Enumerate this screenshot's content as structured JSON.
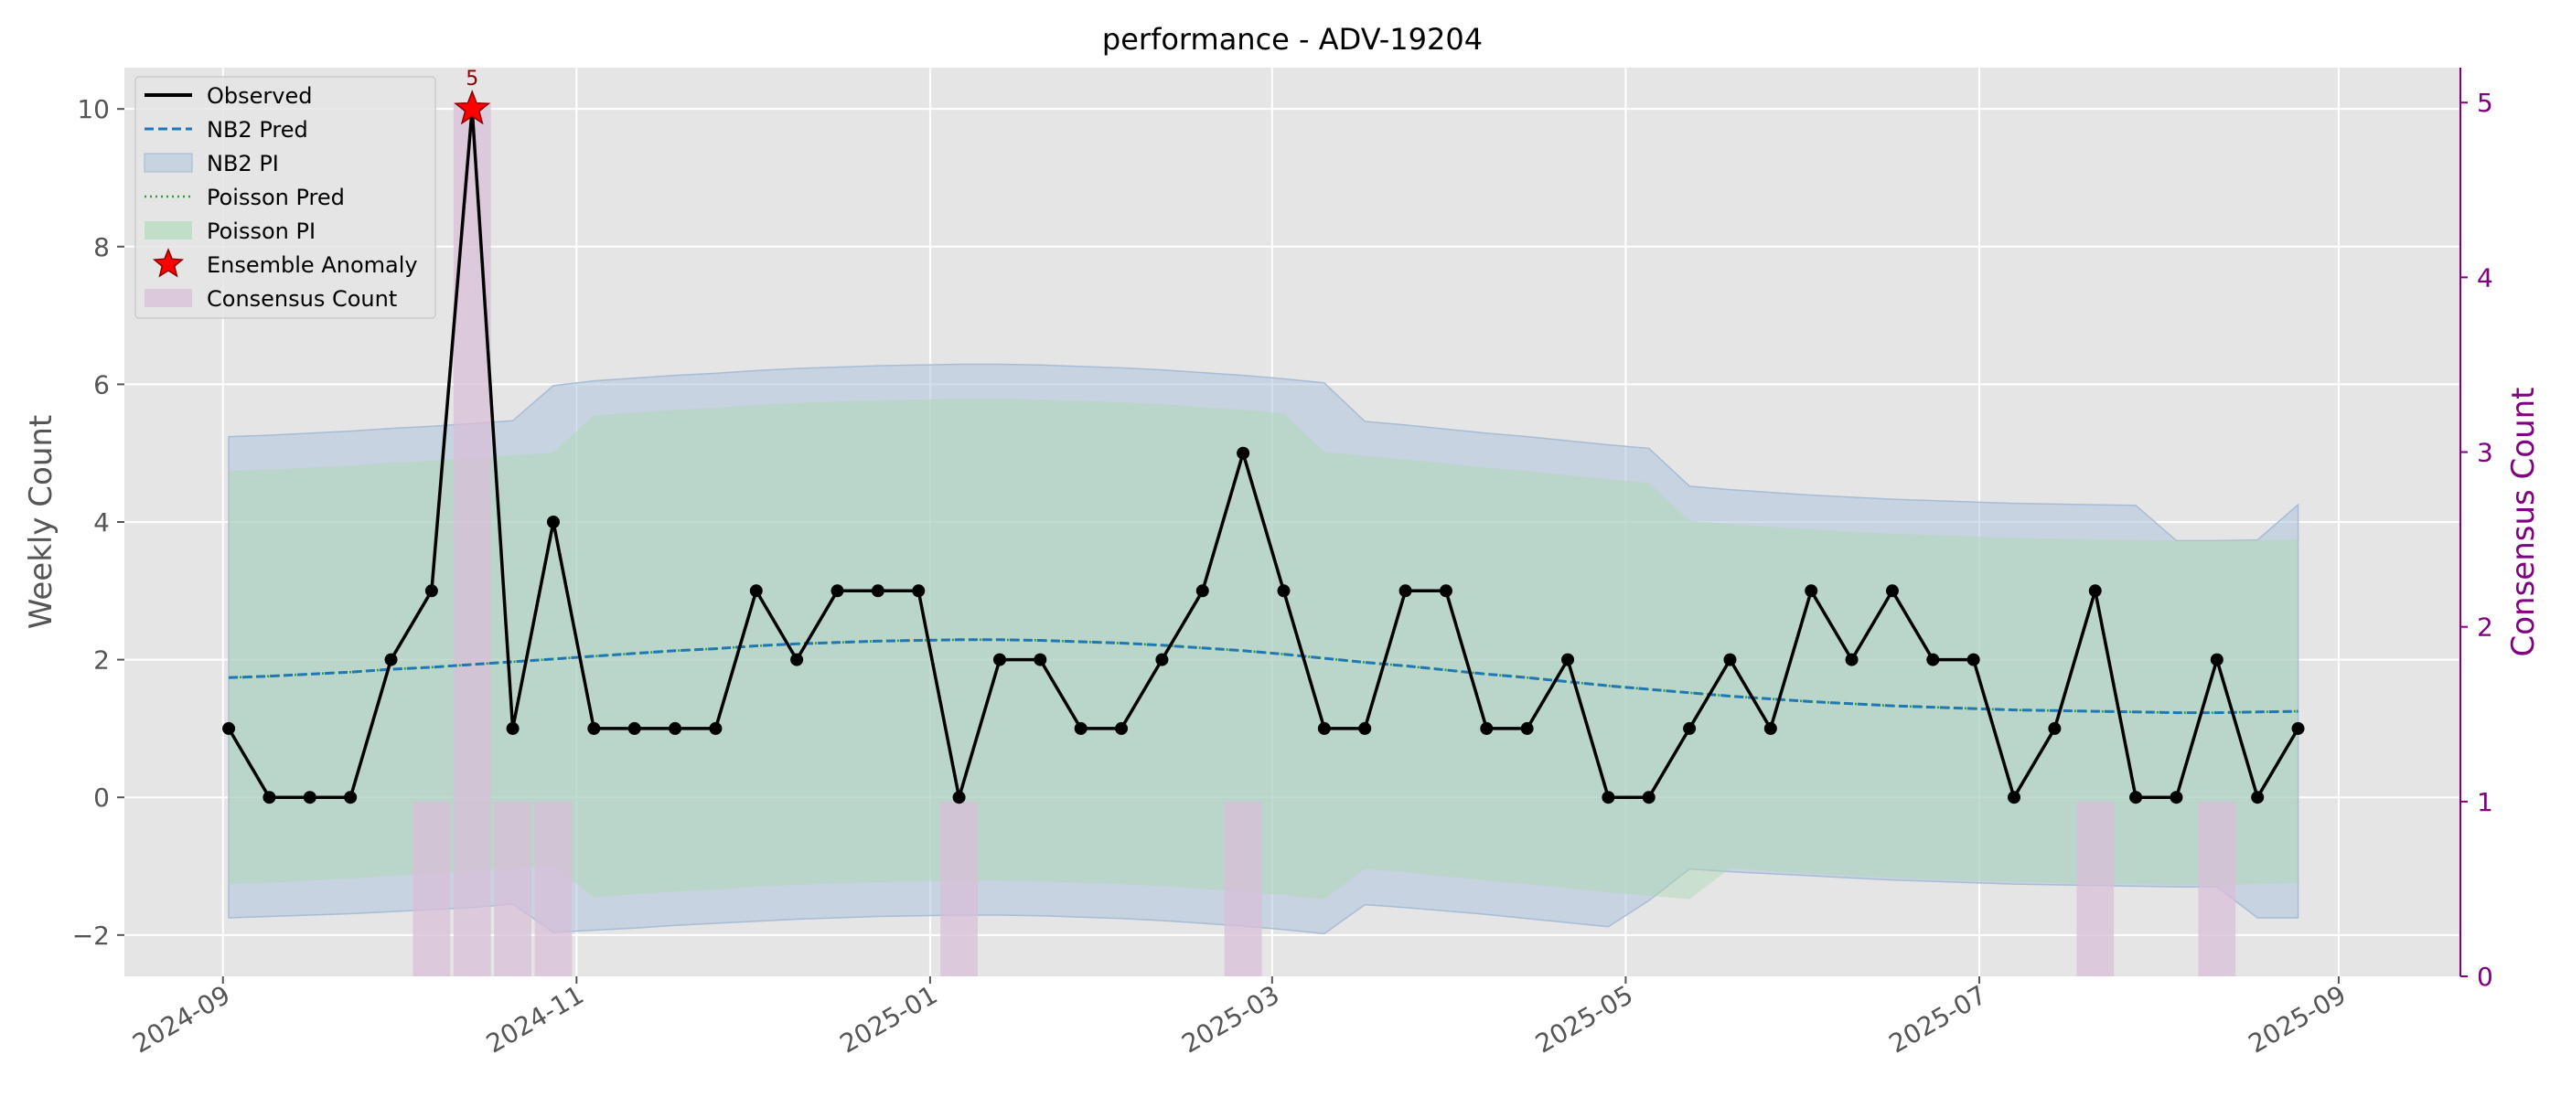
{
  "chart_data": {
    "type": "line",
    "title": "performance - ADV-19204",
    "ylabel": "Weekly Count",
    "ylabel_right": "Consensus Count",
    "ylim": [
      -2.6,
      10.6
    ],
    "ylim_right": [
      0,
      5.2
    ],
    "xlim": [
      "2024-08-15",
      "2025-09-22"
    ],
    "grid": true,
    "legend_position": "top-left",
    "x_ticks": [
      "2024-09",
      "2024-11",
      "2025-01",
      "2025-03",
      "2025-05",
      "2025-07",
      "2025-09"
    ],
    "y_ticks": [
      -2,
      0,
      2,
      4,
      6,
      8,
      10
    ],
    "y_ticks_right": [
      0,
      1,
      2,
      3,
      4,
      5
    ],
    "x": [
      "2024-09-02",
      "2024-09-09",
      "2024-09-16",
      "2024-09-23",
      "2024-09-30",
      "2024-10-07",
      "2024-10-14",
      "2024-10-21",
      "2024-10-28",
      "2024-11-04",
      "2024-11-11",
      "2024-11-18",
      "2024-11-25",
      "2024-12-02",
      "2024-12-09",
      "2024-12-16",
      "2024-12-23",
      "2024-12-30",
      "2025-01-06",
      "2025-01-13",
      "2025-01-20",
      "2025-01-27",
      "2025-02-03",
      "2025-02-10",
      "2025-02-17",
      "2025-02-24",
      "2025-03-03",
      "2025-03-10",
      "2025-03-17",
      "2025-03-24",
      "2025-03-31",
      "2025-04-07",
      "2025-04-14",
      "2025-04-21",
      "2025-04-28",
      "2025-05-05",
      "2025-05-12",
      "2025-05-19",
      "2025-05-26",
      "2025-06-02",
      "2025-06-09",
      "2025-06-16",
      "2025-06-23",
      "2025-06-30",
      "2025-07-07",
      "2025-07-14",
      "2025-07-21",
      "2025-07-28",
      "2025-08-04",
      "2025-08-11",
      "2025-08-18",
      "2025-08-25"
    ],
    "series": [
      {
        "name": "Observed",
        "color": "#000000",
        "values": [
          1,
          0,
          0,
          0,
          2,
          3,
          10,
          1,
          4,
          1,
          1,
          1,
          1,
          3,
          2,
          3,
          3,
          3,
          0,
          2,
          2,
          1,
          1,
          2,
          3,
          5,
          3,
          1,
          1,
          3,
          3,
          1,
          1,
          2,
          0,
          0,
          1,
          2,
          1,
          3,
          2,
          3,
          2,
          2,
          0,
          1,
          3,
          0,
          0,
          2,
          0,
          1
        ]
      },
      {
        "name": "NB2 Pred",
        "color": "#1f77b4",
        "values": [
          1.74,
          1.76,
          1.79,
          1.82,
          1.86,
          1.89,
          1.93,
          1.97,
          2.01,
          2.05,
          2.09,
          2.13,
          2.16,
          2.2,
          2.23,
          2.25,
          2.27,
          2.28,
          2.29,
          2.29,
          2.28,
          2.26,
          2.24,
          2.21,
          2.17,
          2.13,
          2.08,
          2.02,
          1.96,
          1.91,
          1.85,
          1.79,
          1.74,
          1.68,
          1.62,
          1.57,
          1.52,
          1.47,
          1.43,
          1.39,
          1.36,
          1.33,
          1.31,
          1.29,
          1.27,
          1.26,
          1.25,
          1.24,
          1.23,
          1.23,
          1.24,
          1.25
        ]
      },
      {
        "name": "Poisson Pred",
        "color": "#2ca02c",
        "values": [
          1.74,
          1.76,
          1.79,
          1.82,
          1.86,
          1.89,
          1.93,
          1.97,
          2.01,
          2.05,
          2.09,
          2.13,
          2.16,
          2.2,
          2.23,
          2.25,
          2.27,
          2.28,
          2.29,
          2.29,
          2.28,
          2.26,
          2.24,
          2.21,
          2.17,
          2.13,
          2.08,
          2.02,
          1.96,
          1.91,
          1.85,
          1.79,
          1.74,
          1.68,
          1.62,
          1.57,
          1.52,
          1.47,
          1.43,
          1.39,
          1.36,
          1.33,
          1.31,
          1.29,
          1.27,
          1.26,
          1.25,
          1.24,
          1.23,
          1.23,
          1.24,
          1.25
        ]
      }
    ],
    "nb2_pi": {
      "name": "NB2 PI",
      "color": "#b0c4de",
      "lower": [
        -1.75,
        -1.73,
        -1.71,
        -1.69,
        -1.66,
        -1.63,
        -1.6,
        -1.55,
        -1.96,
        -1.93,
        -1.9,
        -1.86,
        -1.83,
        -1.8,
        -1.77,
        -1.75,
        -1.73,
        -1.72,
        -1.71,
        -1.71,
        -1.72,
        -1.74,
        -1.76,
        -1.79,
        -1.83,
        -1.87,
        -1.92,
        -1.98,
        -1.56,
        -1.6,
        -1.65,
        -1.7,
        -1.76,
        -1.82,
        -1.88,
        -1.5,
        -1.04,
        -1.08,
        -1.11,
        -1.14,
        -1.17,
        -1.2,
        -1.22,
        -1.24,
        -1.26,
        -1.27,
        -1.28,
        -1.29,
        -1.3,
        -1.3,
        -1.75,
        -1.75
      ],
      "upper": [
        5.24,
        5.26,
        5.29,
        5.32,
        5.36,
        5.39,
        5.43,
        5.47,
        5.98,
        6.05,
        6.09,
        6.13,
        6.16,
        6.2,
        6.23,
        6.25,
        6.27,
        6.28,
        6.29,
        6.29,
        6.28,
        6.26,
        6.24,
        6.21,
        6.17,
        6.13,
        6.08,
        6.02,
        5.46,
        5.41,
        5.35,
        5.29,
        5.24,
        5.18,
        5.12,
        5.07,
        4.52,
        4.47,
        4.43,
        4.39,
        4.36,
        4.33,
        4.31,
        4.29,
        4.27,
        4.26,
        4.25,
        4.24,
        3.73,
        3.73,
        3.74,
        4.25
      ]
    },
    "poisson_pi": {
      "name": "Poisson PI",
      "color": "#a8d8b0",
      "lower": [
        -1.26,
        -1.24,
        -1.21,
        -1.18,
        -1.14,
        -1.11,
        -1.07,
        -1.03,
        -0.99,
        -1.45,
        -1.41,
        -1.37,
        -1.34,
        -1.3,
        -1.27,
        -1.25,
        -1.23,
        -1.22,
        -1.21,
        -1.21,
        -1.22,
        -1.24,
        -1.26,
        -1.29,
        -1.33,
        -1.37,
        -1.42,
        -1.48,
        -1.04,
        -1.09,
        -1.15,
        -1.21,
        -1.26,
        -1.32,
        -1.38,
        -1.43,
        -1.48,
        -1.03,
        -1.07,
        -1.11,
        -1.14,
        -1.17,
        -1.19,
        -1.21,
        -1.23,
        -1.24,
        -1.25,
        -1.26,
        -1.27,
        -1.27,
        -1.26,
        -1.25
      ],
      "upper": [
        4.74,
        4.76,
        4.79,
        4.82,
        4.86,
        4.89,
        4.93,
        4.97,
        5.01,
        5.55,
        5.59,
        5.63,
        5.66,
        5.7,
        5.73,
        5.75,
        5.77,
        5.78,
        5.79,
        5.79,
        5.78,
        5.76,
        5.74,
        5.71,
        5.67,
        5.63,
        5.58,
        5.02,
        4.96,
        4.91,
        4.85,
        4.79,
        4.74,
        4.68,
        4.62,
        4.57,
        4.02,
        3.97,
        3.93,
        3.89,
        3.86,
        3.83,
        3.81,
        3.79,
        3.77,
        3.76,
        3.75,
        3.74,
        3.73,
        3.73,
        3.74,
        3.75
      ]
    },
    "anomalies": {
      "name": "Ensemble Anomaly",
      "color": "#ff0000",
      "points": [
        {
          "x": "2024-10-14",
          "y": 10,
          "label": "5"
        }
      ]
    },
    "consensus": {
      "name": "Consensus Count",
      "color": "#d8bfd8",
      "bars": [
        {
          "x": "2024-10-07",
          "value": 1
        },
        {
          "x": "2024-10-14",
          "value": 5
        },
        {
          "x": "2024-10-21",
          "value": 1
        },
        {
          "x": "2024-10-28",
          "value": 1
        },
        {
          "x": "2025-01-06",
          "value": 1
        },
        {
          "x": "2025-02-24",
          "value": 1
        },
        {
          "x": "2025-07-21",
          "value": 1
        },
        {
          "x": "2025-08-11",
          "value": 1
        }
      ]
    }
  }
}
